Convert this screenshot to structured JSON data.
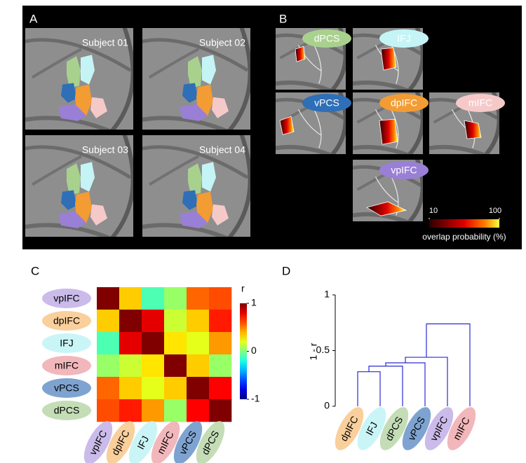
{
  "panel_labels": [
    "A",
    "B",
    "C",
    "D"
  ],
  "subjects": [
    "Subject 01",
    "Subject 02",
    "Subject 03",
    "Subject 04"
  ],
  "regions": [
    {
      "name": "dPCS",
      "color": "#a9d18e",
      "text_color": "#ffffff"
    },
    {
      "name": "IFJ",
      "color": "#c5f4f6",
      "text_color": "#ffffff"
    },
    {
      "name": "vPCS",
      "color": "#2e6fb7",
      "text_color": "#ffffff"
    },
    {
      "name": "dpIFC",
      "color": "#f39c34",
      "text_color": "#ffffff"
    },
    {
      "name": "mIFC",
      "color": "#f6c9c9",
      "text_color": "#ffffff"
    },
    {
      "name": "vpIFC",
      "color": "#9a7fd6",
      "text_color": "#ffffff"
    }
  ],
  "overlap_colorbar": {
    "range": [
      10,
      100
    ],
    "ticks": [
      10,
      100
    ],
    "label": "overlap probability (%)"
  },
  "chart_data": [
    {
      "type": "heatmap",
      "colormap": "jet",
      "rows": [
        "vpIFC",
        "dpIFC",
        "IFJ",
        "mIFC",
        "vPCS",
        "dPCS"
      ],
      "columns": [
        "vpIFC",
        "dpIFC",
        "IFJ",
        "mIFC",
        "vPCS",
        "dPCS"
      ],
      "label_colors": [
        "#cbbbea",
        "#f9cf9c",
        "#c9f5f7",
        "#f2b7bb",
        "#7fa3d0",
        "#c4ddb6"
      ],
      "values": [
        [
          1,
          0.35,
          -0.1,
          0.05,
          0.55,
          0.6
        ],
        [
          0.35,
          1,
          0.8,
          0.15,
          0.35,
          0.7
        ],
        [
          -0.1,
          0.8,
          1,
          0.3,
          0.2,
          0.45
        ],
        [
          0.05,
          0.15,
          0.3,
          1,
          0.35,
          0.05
        ],
        [
          0.55,
          0.35,
          0.2,
          0.35,
          1,
          0.75
        ],
        [
          0.6,
          0.7,
          0.45,
          0.05,
          0.75,
          1
        ]
      ],
      "clim": [
        -1,
        1
      ],
      "colorbar_ticks": [
        1,
        0,
        -1
      ],
      "colorbar_label": "r"
    },
    {
      "type": "dendrogram",
      "leaves": [
        "dpIFC",
        "IFJ",
        "dPCS",
        "vPCS",
        "vpIFC",
        "mIFC"
      ],
      "label_colors": [
        "#f9cf9c",
        "#c9f5f7",
        "#c4ddb6",
        "#7fa3d0",
        "#cbbbea",
        "#f2b7bb"
      ],
      "heights": [
        0.31,
        0.36,
        0.39,
        0.44,
        0.74
      ],
      "ylim": [
        0,
        1
      ],
      "yticks": [
        0,
        0.5,
        1
      ],
      "ylabel": "1 - r",
      "color": "#2b2bd2"
    }
  ]
}
